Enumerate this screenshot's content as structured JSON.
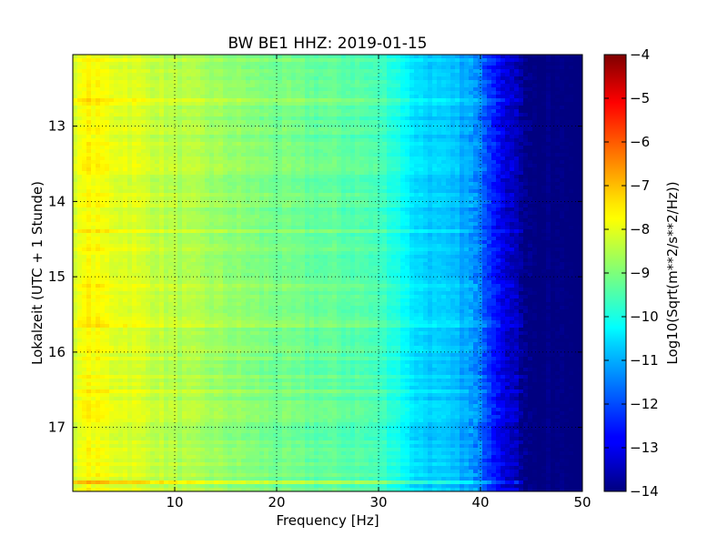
{
  "chart_data": {
    "type": "heatmap",
    "title": "BW BE1 HHZ: 2019-01-15",
    "xlabel": "Frequency [Hz]",
    "ylabel": "Lokalzeit (UTC + 1 Stunde)",
    "xlim": [
      0,
      50
    ],
    "ylim": [
      12.05,
      17.85
    ],
    "y_inverted": true,
    "grid": true,
    "grid_style": "dotted",
    "xticks": [
      10,
      20,
      30,
      40,
      50
    ],
    "xtick_labels": [
      "10",
      "20",
      "30",
      "40",
      "50"
    ],
    "yticks": [
      13,
      14,
      15,
      16,
      17
    ],
    "ytick_labels": [
      "13",
      "14",
      "15",
      "16",
      "17"
    ],
    "colorbar": {
      "label": "Log10(Sqrt(m**2/s**2/Hz))",
      "colormap": "jet",
      "range": [
        -14,
        -4
      ],
      "ticks": [
        -4,
        -5,
        -6,
        -7,
        -8,
        -9,
        -10,
        -11,
        -12,
        -13,
        -14
      ],
      "tick_labels": [
        "−4",
        "−5",
        "−6",
        "−7",
        "−8",
        "−9",
        "−10",
        "−11",
        "−12",
        "−13",
        "−14"
      ]
    },
    "spectrum_profile": {
      "frequency": [
        0.5,
        1,
        2,
        4,
        6,
        8,
        10,
        12,
        15,
        18,
        20,
        22,
        25,
        28,
        30,
        32,
        33,
        34,
        36,
        38,
        39,
        40,
        41,
        42,
        43,
        44,
        45,
        50
      ],
      "value": [
        -8.2,
        -7.7,
        -7.8,
        -8.0,
        -8.1,
        -8.3,
        -8.5,
        -8.6,
        -8.8,
        -9.0,
        -9.1,
        -9.2,
        -9.3,
        -9.4,
        -9.6,
        -10.0,
        -10.4,
        -10.6,
        -10.8,
        -11.0,
        -11.2,
        -11.6,
        -12.2,
        -12.8,
        -13.3,
        -13.7,
        -14.0,
        -14.0
      ]
    },
    "strong_rows": [
      {
        "time": 12.68,
        "delta": 0.3
      },
      {
        "time": 13.55,
        "delta": 0.25
      },
      {
        "time": 14.4,
        "delta": 0.2
      },
      {
        "time": 15.12,
        "delta": 0.35
      },
      {
        "time": 15.62,
        "delta": 0.3
      },
      {
        "time": 16.52,
        "delta": 0.3
      },
      {
        "time": 17.72,
        "delta": 0.8
      }
    ]
  }
}
